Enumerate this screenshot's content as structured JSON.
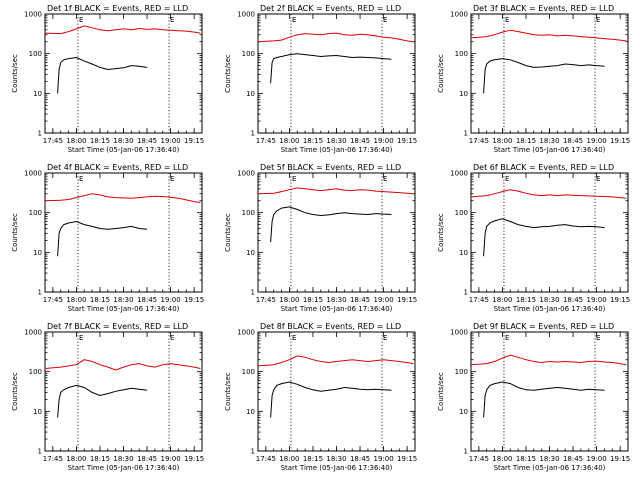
{
  "chart_data": {
    "type": "line",
    "layout_grid": "3x3",
    "y_scale": "log",
    "ylim": [
      1,
      1000
    ],
    "y_ticks": [
      1,
      10,
      100,
      1000
    ],
    "y_tick_labels": [
      "1",
      "10",
      "100",
      "1000"
    ],
    "x_unit": "minutes",
    "xlim": [
      -5,
      95
    ],
    "x_ticks": [
      0,
      15,
      30,
      45,
      60,
      75,
      90
    ],
    "x_tick_labels": [
      "17:45",
      "18:00",
      "18:15",
      "18:30",
      "18:45",
      "19:00",
      "19:15"
    ],
    "ylabel": "Counts/sec",
    "xlabel": "Start Time (05-Jan-06 17:36:40)",
    "vertical_markers": [
      {
        "x": 16,
        "label": "E"
      },
      {
        "x": 74,
        "label": "E"
      }
    ],
    "panels": [
      {
        "title": "Det 1f BLACK = Events, RED = LLD",
        "series": [
          {
            "color": "#e00000",
            "x": [
              -5,
              5,
              10,
              15,
              20,
              25,
              30,
              35,
              40,
              45,
              50,
              55,
              60,
              65,
              70,
              75,
              80,
              85,
              90,
              94
            ],
            "y": [
              330,
              320,
              360,
              420,
              500,
              450,
              400,
              380,
              400,
              420,
              400,
              430,
              410,
              420,
              400,
              390,
              380,
              370,
              350,
              330
            ]
          },
          {
            "color": "#000000",
            "x": [
              3,
              4,
              5,
              7,
              10,
              15,
              20,
              25,
              30,
              35,
              40,
              45,
              50,
              55,
              60
            ],
            "y": [
              10,
              40,
              60,
              70,
              75,
              80,
              65,
              55,
              45,
              40,
              42,
              44,
              50,
              48,
              45
            ]
          }
        ]
      },
      {
        "title": "Det 2f BLACK = Events, RED = LLD",
        "series": [
          {
            "color": "#e00000",
            "x": [
              -5,
              5,
              10,
              15,
              20,
              25,
              30,
              35,
              40,
              45,
              50,
              55,
              60,
              65,
              70,
              75,
              80,
              85,
              90,
              94
            ],
            "y": [
              200,
              210,
              220,
              260,
              300,
              320,
              310,
              300,
              320,
              330,
              300,
              290,
              310,
              300,
              280,
              260,
              250,
              230,
              210,
              200
            ]
          },
          {
            "color": "#000000",
            "x": [
              3,
              4,
              5,
              7,
              10,
              15,
              20,
              25,
              30,
              35,
              40,
              45,
              50,
              55,
              60,
              65,
              70,
              75,
              80
            ],
            "y": [
              18,
              60,
              75,
              80,
              85,
              95,
              100,
              95,
              90,
              85,
              88,
              90,
              85,
              80,
              82,
              80,
              78,
              75,
              72
            ]
          }
        ]
      },
      {
        "title": "Det 3f BLACK = Events, RED = LLD",
        "series": [
          {
            "color": "#e00000",
            "x": [
              -5,
              5,
              10,
              15,
              20,
              25,
              30,
              35,
              40,
              45,
              50,
              55,
              60,
              65,
              70,
              75,
              80,
              85,
              90,
              94
            ],
            "y": [
              250,
              270,
              300,
              350,
              390,
              360,
              330,
              300,
              290,
              300,
              280,
              290,
              280,
              270,
              260,
              250,
              240,
              230,
              220,
              210
            ]
          },
          {
            "color": "#000000",
            "x": [
              3,
              4,
              5,
              7,
              10,
              15,
              20,
              25,
              30,
              35,
              40,
              45,
              50,
              55,
              60,
              65,
              70,
              75,
              80
            ],
            "y": [
              10,
              40,
              55,
              65,
              70,
              75,
              70,
              60,
              50,
              45,
              46,
              48,
              50,
              55,
              53,
              50,
              52,
              50,
              48
            ]
          }
        ]
      },
      {
        "title": "Det 4f BLACK = Events, RED = LLD",
        "series": [
          {
            "color": "#e00000",
            "x": [
              -5,
              5,
              10,
              15,
              20,
              25,
              30,
              35,
              40,
              45,
              50,
              55,
              60,
              65,
              70,
              75,
              80,
              85,
              90,
              94
            ],
            "y": [
              200,
              205,
              215,
              240,
              270,
              300,
              280,
              250,
              240,
              235,
              230,
              240,
              250,
              260,
              255,
              245,
              230,
              210,
              190,
              180
            ]
          },
          {
            "color": "#000000",
            "x": [
              3,
              4,
              5,
              7,
              10,
              15,
              20,
              25,
              30,
              35,
              40,
              45,
              50,
              55,
              60
            ],
            "y": [
              8,
              30,
              40,
              50,
              55,
              60,
              50,
              45,
              40,
              38,
              40,
              42,
              45,
              40,
              38
            ]
          }
        ]
      },
      {
        "title": "Det 5f BLACK = Events, RED = LLD",
        "series": [
          {
            "color": "#e00000",
            "x": [
              -5,
              5,
              10,
              15,
              20,
              25,
              30,
              35,
              40,
              45,
              50,
              55,
              60,
              65,
              70,
              75,
              80,
              85,
              90,
              94
            ],
            "y": [
              300,
              310,
              340,
              380,
              420,
              400,
              380,
              360,
              380,
              400,
              370,
              360,
              380,
              370,
              350,
              340,
              330,
              320,
              310,
              300
            ]
          },
          {
            "color": "#000000",
            "x": [
              3,
              4,
              5,
              7,
              10,
              15,
              20,
              25,
              30,
              35,
              40,
              45,
              50,
              55,
              60,
              65,
              70,
              75,
              80
            ],
            "y": [
              18,
              60,
              90,
              110,
              130,
              140,
              120,
              100,
              90,
              85,
              88,
              95,
              100,
              95,
              92,
              90,
              95,
              92,
              90
            ]
          }
        ]
      },
      {
        "title": "Det 6f BLACK = Events, RED = LLD",
        "series": [
          {
            "color": "#e00000",
            "x": [
              -5,
              5,
              10,
              15,
              20,
              25,
              30,
              35,
              40,
              45,
              50,
              55,
              60,
              65,
              70,
              75,
              80,
              85,
              90,
              94
            ],
            "y": [
              250,
              270,
              300,
              340,
              380,
              350,
              310,
              280,
              270,
              280,
              270,
              280,
              275,
              270,
              265,
              260,
              255,
              250,
              240,
              230
            ]
          },
          {
            "color": "#000000",
            "x": [
              3,
              4,
              5,
              7,
              10,
              15,
              20,
              25,
              30,
              35,
              40,
              45,
              50,
              55,
              60,
              65,
              70,
              75,
              80
            ],
            "y": [
              8,
              30,
              45,
              55,
              62,
              70,
              60,
              50,
              45,
              42,
              44,
              45,
              48,
              50,
              46,
              44,
              45,
              44,
              42
            ]
          }
        ]
      },
      {
        "title": "Det 7f BLACK = Events, RED = LLD",
        "series": [
          {
            "color": "#e00000",
            "x": [
              -5,
              5,
              10,
              15,
              20,
              25,
              30,
              35,
              40,
              45,
              50,
              55,
              60,
              65,
              70,
              75,
              80,
              85,
              90,
              94
            ],
            "y": [
              120,
              130,
              140,
              150,
              200,
              180,
              150,
              130,
              110,
              130,
              150,
              160,
              140,
              130,
              150,
              160,
              150,
              140,
              130,
              120
            ]
          },
          {
            "color": "#000000",
            "x": [
              3,
              4,
              5,
              7,
              10,
              15,
              20,
              25,
              30,
              35,
              40,
              45,
              50,
              55,
              60
            ],
            "y": [
              7,
              20,
              30,
              35,
              40,
              45,
              40,
              30,
              25,
              28,
              32,
              35,
              38,
              36,
              34
            ]
          }
        ]
      },
      {
        "title": "Det 8f BLACK = Events, RED = LLD",
        "series": [
          {
            "color": "#e00000",
            "x": [
              -5,
              5,
              10,
              15,
              20,
              25,
              30,
              35,
              40,
              45,
              50,
              55,
              60,
              65,
              70,
              75,
              80,
              85,
              90,
              94
            ],
            "y": [
              140,
              150,
              170,
              200,
              250,
              230,
              200,
              180,
              170,
              180,
              190,
              200,
              190,
              180,
              190,
              200,
              190,
              180,
              170,
              160
            ]
          },
          {
            "color": "#000000",
            "x": [
              3,
              4,
              5,
              7,
              10,
              15,
              20,
              25,
              30,
              35,
              40,
              45,
              50,
              55,
              60,
              65,
              70,
              75,
              80
            ],
            "y": [
              7,
              25,
              35,
              45,
              50,
              55,
              48,
              40,
              35,
              32,
              34,
              36,
              40,
              38,
              36,
              35,
              36,
              35,
              34
            ]
          }
        ]
      },
      {
        "title": "Det 9f BLACK = Events, RED = LLD",
        "series": [
          {
            "color": "#e00000",
            "x": [
              -5,
              5,
              10,
              15,
              20,
              25,
              30,
              35,
              40,
              45,
              50,
              55,
              60,
              65,
              70,
              75,
              80,
              85,
              90,
              94
            ],
            "y": [
              150,
              160,
              180,
              220,
              260,
              230,
              200,
              180,
              170,
              180,
              175,
              180,
              175,
              170,
              180,
              185,
              175,
              170,
              160,
              150
            ]
          },
          {
            "color": "#000000",
            "x": [
              3,
              4,
              5,
              7,
              10,
              15,
              20,
              25,
              30,
              35,
              40,
              45,
              50,
              55,
              60,
              65,
              70,
              75,
              80
            ],
            "y": [
              7,
              25,
              35,
              45,
              50,
              55,
              50,
              40,
              35,
              34,
              36,
              38,
              40,
              38,
              36,
              34,
              36,
              35,
              34
            ]
          }
        ]
      }
    ]
  }
}
